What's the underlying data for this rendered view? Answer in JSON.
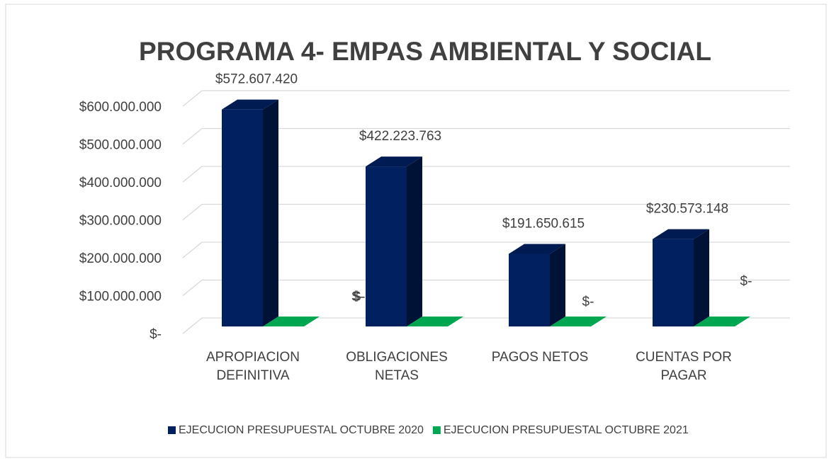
{
  "chart_data": {
    "type": "bar3d",
    "title": "PROGRAMA 4- EMPAS AMBIENTAL Y SOCIAL",
    "categories": [
      "APROPIACION DEFINITIVA",
      "OBLIGACIONES NETAS",
      "PAGOS NETOS",
      "CUENTAS POR PAGAR"
    ],
    "series": [
      {
        "name": "EJECUCION PRESUPUESTAL OCTUBRE 2020",
        "color": "#002060",
        "values": [
          572607420,
          422223763,
          191650615,
          230573148
        ],
        "value_labels": [
          "$572.607.420",
          "$422.223.763",
          "$191.650.615",
          "$230.573.148"
        ]
      },
      {
        "name": "EJECUCION PRESUPUESTAL OCTUBRE 2021",
        "color": "#00a650",
        "values": [
          0,
          0,
          0,
          0
        ],
        "value_labels": [
          "$-",
          "$-",
          "$-",
          "$-"
        ]
      }
    ],
    "ylim": [
      0,
      600000000
    ],
    "yticks": [
      {
        "value": 0,
        "label": "$-"
      },
      {
        "value": 100000000,
        "label": "$100.000.000"
      },
      {
        "value": 200000000,
        "label": "$200.000.000"
      },
      {
        "value": 300000000,
        "label": "$300.000.000"
      },
      {
        "value": 400000000,
        "label": "$400.000.000"
      },
      {
        "value": 500000000,
        "label": "$500.000.000"
      },
      {
        "value": 600000000,
        "label": "$600.000.000"
      }
    ],
    "grid": true,
    "legend": "bottom"
  }
}
